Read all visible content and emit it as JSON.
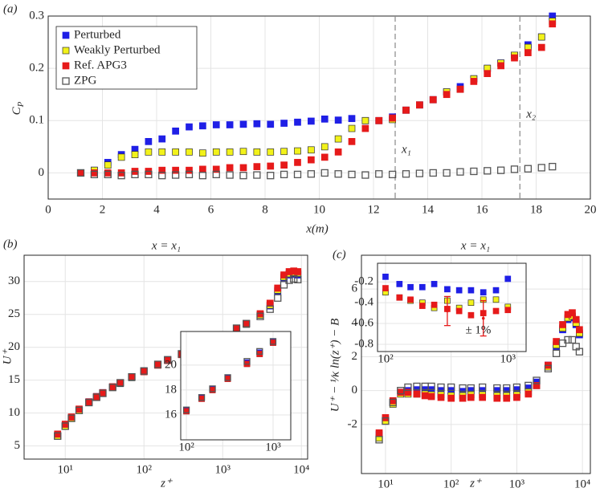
{
  "chart_data": [
    {
      "type": "scatter",
      "panel": "(a)",
      "ylabel": {
        "text": "C",
        "subscript": "P"
      },
      "xlabel": "x(m)",
      "xlim": [
        0,
        20
      ],
      "ylim": [
        -0.05,
        0.3
      ],
      "xticks": [
        0,
        2,
        4,
        6,
        8,
        10,
        12,
        14,
        16,
        18,
        20
      ],
      "yticks": [
        0,
        0.1,
        0.2,
        0.3
      ],
      "grid": true,
      "legend": "upper left",
      "vlines": [
        12.8,
        17.4
      ],
      "vline_labels": [
        "x₁",
        "x₂"
      ],
      "x": [
        1.2,
        1.7,
        2.2,
        2.7,
        3.2,
        3.7,
        4.2,
        4.7,
        5.2,
        5.7,
        6.2,
        6.7,
        7.2,
        7.7,
        8.2,
        8.7,
        9.2,
        9.7,
        10.2,
        10.7,
        11.2,
        11.7,
        12.2,
        12.7,
        13.2,
        13.7,
        14.2,
        14.7,
        15.2,
        15.7,
        16.2,
        16.7,
        17.2,
        17.7,
        18.2,
        18.6
      ],
      "series": [
        {
          "name": "Perturbed",
          "color": "#1f1fe6",
          "edge": "#1f1fe6",
          "values": [
            0,
            0.005,
            0.02,
            0.035,
            0.045,
            0.06,
            0.065,
            0.08,
            0.088,
            0.09,
            0.092,
            0.092,
            0.093,
            0.094,
            0.093,
            0.095,
            0.097,
            0.099,
            0.103,
            0.101,
            0.104,
            0.1,
            0.1,
            0.107,
            0.12,
            0.13,
            0.14,
            0.155,
            0.165,
            0.18,
            0.2,
            0.21,
            0.225,
            0.245,
            0.26,
            0.3
          ]
        },
        {
          "name": "Weakly Perturbed",
          "color": "#f2f21a",
          "edge": "#333333",
          "values": [
            0,
            0.005,
            0.015,
            0.03,
            0.035,
            0.04,
            0.04,
            0.04,
            0.04,
            0.038,
            0.04,
            0.04,
            0.041,
            0.04,
            0.04,
            0.041,
            0.042,
            0.044,
            0.05,
            0.065,
            0.085,
            0.1,
            0.1,
            0.102,
            0.12,
            0.13,
            0.14,
            0.155,
            0.16,
            0.18,
            0.2,
            0.21,
            0.225,
            0.24,
            0.26,
            0.29
          ]
        },
        {
          "name": "Ref. APG3",
          "color": "#e61a1a",
          "edge": "#e61a1a",
          "values": [
            0,
            0,
            0,
            0,
            0.003,
            0.003,
            0.005,
            0.005,
            0.005,
            0.007,
            0.007,
            0.01,
            0.01,
            0.012,
            0.013,
            0.015,
            0.02,
            0.025,
            0.03,
            0.04,
            0.06,
            0.085,
            0.1,
            0.105,
            0.12,
            0.13,
            0.14,
            0.15,
            0.16,
            0.175,
            0.19,
            0.205,
            0.22,
            0.23,
            0.24,
            0.285
          ]
        },
        {
          "name": "ZPG",
          "color": "none",
          "edge": "#555555",
          "values": [
            0,
            -0.003,
            -0.003,
            -0.005,
            -0.003,
            -0.003,
            -0.005,
            -0.004,
            -0.003,
            -0.005,
            -0.003,
            -0.004,
            -0.005,
            -0.004,
            -0.005,
            -0.003,
            -0.003,
            -0.002,
            0,
            -0.002,
            -0.003,
            -0.004,
            -0.002,
            -0.003,
            -0.002,
            -0.001,
            0,
            0,
            0.002,
            0.003,
            0.004,
            0.005,
            0.007,
            0.008,
            0.01,
            0.012
          ]
        }
      ]
    },
    {
      "type": "scatter",
      "panel": "(b)",
      "title": "x = x₁",
      "ylabel": "U⁺",
      "xlabel": "z⁺",
      "xscale": "log",
      "xlim": [
        3,
        12000
      ],
      "ylim": [
        3,
        34
      ],
      "xticks": [
        {
          "value": 10,
          "label": "10¹"
        },
        {
          "value": 100,
          "label": "10²"
        },
        {
          "value": 1000,
          "label": "10³"
        },
        {
          "value": 10000,
          "label": "10⁴"
        }
      ],
      "yticks": [
        5,
        10,
        15,
        20,
        25,
        30
      ],
      "grid": true,
      "x": [
        8,
        10,
        12,
        15,
        20,
        25,
        30,
        40,
        50,
        70,
        100,
        150,
        200,
        300,
        500,
        700,
        1000,
        1500,
        2000,
        3000,
        4000,
        5000,
        6000,
        7000,
        8000,
        9000
      ],
      "series": [
        {
          "color": "#1f1fe6",
          "edge": "#1f1fe6",
          "values": [
            6.6,
            8.1,
            9.3,
            10.5,
            11.7,
            12.5,
            13.1,
            14,
            14.6,
            15.5,
            16.4,
            17.4,
            18.1,
            19,
            20.2,
            21,
            21.9,
            22.9,
            23.6,
            24.9,
            26.3,
            28.5,
            30.5,
            31,
            31.1,
            31
          ]
        },
        {
          "color": "#f2f21a",
          "edge": "#333333",
          "values": [
            6.5,
            8,
            9.2,
            10.4,
            11.6,
            12.4,
            13,
            13.9,
            14.5,
            15.4,
            16.3,
            17.3,
            18,
            18.9,
            20.1,
            20.9,
            21.8,
            22.8,
            23.5,
            24.9,
            26.4,
            28.7,
            30.7,
            31.2,
            31.3,
            31.2
          ]
        },
        {
          "color": "#e61a1a",
          "edge": "#e61a1a",
          "values": [
            6.8,
            8.3,
            9.4,
            10.6,
            11.7,
            12.5,
            13.1,
            14,
            14.6,
            15.5,
            16.3,
            17.3,
            18,
            18.9,
            20.1,
            20.9,
            21.8,
            22.8,
            23.6,
            25.1,
            26.7,
            29,
            31,
            31.5,
            31.6,
            31.5
          ]
        },
        {
          "color": "none",
          "edge": "#555555",
          "values": [
            6.5,
            8,
            9.2,
            10.4,
            11.6,
            12.4,
            13,
            13.9,
            14.6,
            15.5,
            16.4,
            17.4,
            18.1,
            19,
            20.3,
            21.1,
            21.9,
            22.9,
            23.6,
            24.7,
            25.8,
            27.5,
            29.5,
            30.2,
            30.4,
            30.3
          ]
        }
      ]
    },
    {
      "type": "scatter",
      "inset": true,
      "xscale": "log",
      "xlim": [
        86,
        1600
      ],
      "ylim": [
        14,
        22.7
      ],
      "xticks": [
        {
          "value": 100,
          "label": "10²"
        },
        {
          "value": 1000,
          "label": "10³"
        }
      ],
      "yticks": [
        16,
        18,
        20
      ],
      "grid": true,
      "x": [
        100,
        150,
        200,
        300,
        500,
        700,
        1000
      ],
      "series": [
        {
          "color": "#1f1fe6",
          "edge": "#1f1fe6",
          "values": [
            16.4,
            17.4,
            18.1,
            19,
            20.2,
            21,
            21.9
          ]
        },
        {
          "color": "#f2f21a",
          "edge": "#333333",
          "values": [
            16.3,
            17.3,
            18,
            18.9,
            20.1,
            20.9,
            21.8
          ]
        },
        {
          "color": "#e61a1a",
          "edge": "#e61a1a",
          "values": [
            16.3,
            17.3,
            18,
            18.9,
            20.1,
            20.9,
            21.8
          ]
        },
        {
          "color": "none",
          "edge": "#555555",
          "values": [
            16.4,
            17.4,
            18.1,
            19,
            20.3,
            21.1,
            21.9
          ]
        }
      ]
    },
    {
      "type": "scatter",
      "panel": "(c)",
      "title": "x = x₁",
      "ylabel": "U⁺ − ¹⁄κ ln(z⁺) − B",
      "xlabel": "z⁺",
      "xscale": "log",
      "xlim": [
        4.3,
        13200
      ],
      "ylim": [
        -4.9,
        8
      ],
      "xticks": [
        {
          "value": 10,
          "label": "10¹"
        },
        {
          "value": 100,
          "label": "10²"
        },
        {
          "value": 1000,
          "label": "10³"
        },
        {
          "value": 10000,
          "label": "10⁴"
        }
      ],
      "yticks": [
        -2,
        0,
        2,
        4,
        6
      ],
      "grid": true,
      "x": [
        8,
        10,
        13,
        17,
        22,
        30,
        40,
        50,
        70,
        100,
        150,
        200,
        300,
        500,
        700,
        1000,
        1500,
        2000,
        3000,
        4000,
        5000,
        6000,
        7000,
        8000,
        9000
      ],
      "series": [
        {
          "color": "#1f1fe6",
          "edge": "#1f1fe6",
          "values": [
            -2.6,
            -1.7,
            -0.7,
            -0.1,
            0,
            0.05,
            0.05,
            0.05,
            0,
            0,
            -0.05,
            0,
            0,
            0,
            0,
            0.05,
            0.15,
            0.5,
            1.5,
            2.6,
            3.6,
            4.2,
            4.3,
            3.9,
            3.3
          ]
        },
        {
          "color": "#f2f21a",
          "edge": "#333333",
          "values": [
            -2.8,
            -1.8,
            -0.8,
            -0.2,
            -0.2,
            -0.2,
            -0.2,
            -0.25,
            -0.25,
            -0.3,
            -0.3,
            -0.25,
            -0.25,
            -0.3,
            -0.3,
            -0.25,
            -0.1,
            0.3,
            1.4,
            2.7,
            3.7,
            4.3,
            4.4,
            4,
            3.4
          ]
        },
        {
          "color": "#e61a1a",
          "edge": "#e61a1a",
          "values": [
            -2.5,
            -1.6,
            -0.6,
            -0.1,
            -0.1,
            -0.2,
            -0.3,
            -0.35,
            -0.4,
            -0.45,
            -0.45,
            -0.4,
            -0.4,
            -0.45,
            -0.45,
            -0.4,
            -0.2,
            0.3,
            1.5,
            2.9,
            3.9,
            4.5,
            4.6,
            4.2,
            3.6
          ]
        },
        {
          "color": "none",
          "edge": "#555555",
          "values": [
            -2.9,
            -1.8,
            -0.7,
            0,
            0.2,
            0.25,
            0.25,
            0.25,
            0.2,
            0.2,
            0.15,
            0.15,
            0.2,
            0.15,
            0.15,
            0.2,
            0.3,
            0.6,
            1.3,
            2.2,
            2.8,
            3,
            3,
            2.6,
            2.3
          ]
        }
      ]
    },
    {
      "type": "scatter",
      "inset": true,
      "xscale": "log",
      "annotation": "± 1%",
      "xlim": [
        86,
        1410
      ],
      "ylim": [
        -0.87,
        -0.02
      ],
      "xticks": [
        {
          "value": 100,
          "label": "10²"
        },
        {
          "value": 1000,
          "label": "10³"
        }
      ],
      "yticks": [
        -0.8,
        -0.6,
        -0.4,
        -0.2
      ],
      "grid": true,
      "x": [
        100,
        130,
        160,
        200,
        250,
        320,
        400,
        500,
        630,
        800,
        1000
      ],
      "series": [
        {
          "color": "#1f1fe6",
          "edge": "#1f1fe6",
          "values": [
            -0.15,
            -0.22,
            -0.25,
            -0.25,
            -0.22,
            -0.27,
            -0.28,
            -0.28,
            -0.3,
            -0.28,
            -0.17
          ]
        },
        {
          "color": "#f2f21a",
          "edge": "#333333",
          "values": [
            -0.3,
            -0.35,
            -0.38,
            -0.4,
            -0.45,
            -0.38,
            -0.45,
            -0.4,
            -0.37,
            -0.37,
            -0.44
          ]
        },
        {
          "color": "#e61a1a",
          "edge": "#e61a1a",
          "values": [
            -0.26,
            -0.35,
            -0.37,
            -0.43,
            -0.42,
            -0.46,
            -0.48,
            -0.52,
            -0.5,
            -0.48,
            -0.47
          ]
        }
      ],
      "errorbars": [
        {
          "x": 320,
          "value": -0.48,
          "error": 0.14
        },
        {
          "x": 630,
          "value": -0.55,
          "error": 0.17
        }
      ]
    }
  ]
}
